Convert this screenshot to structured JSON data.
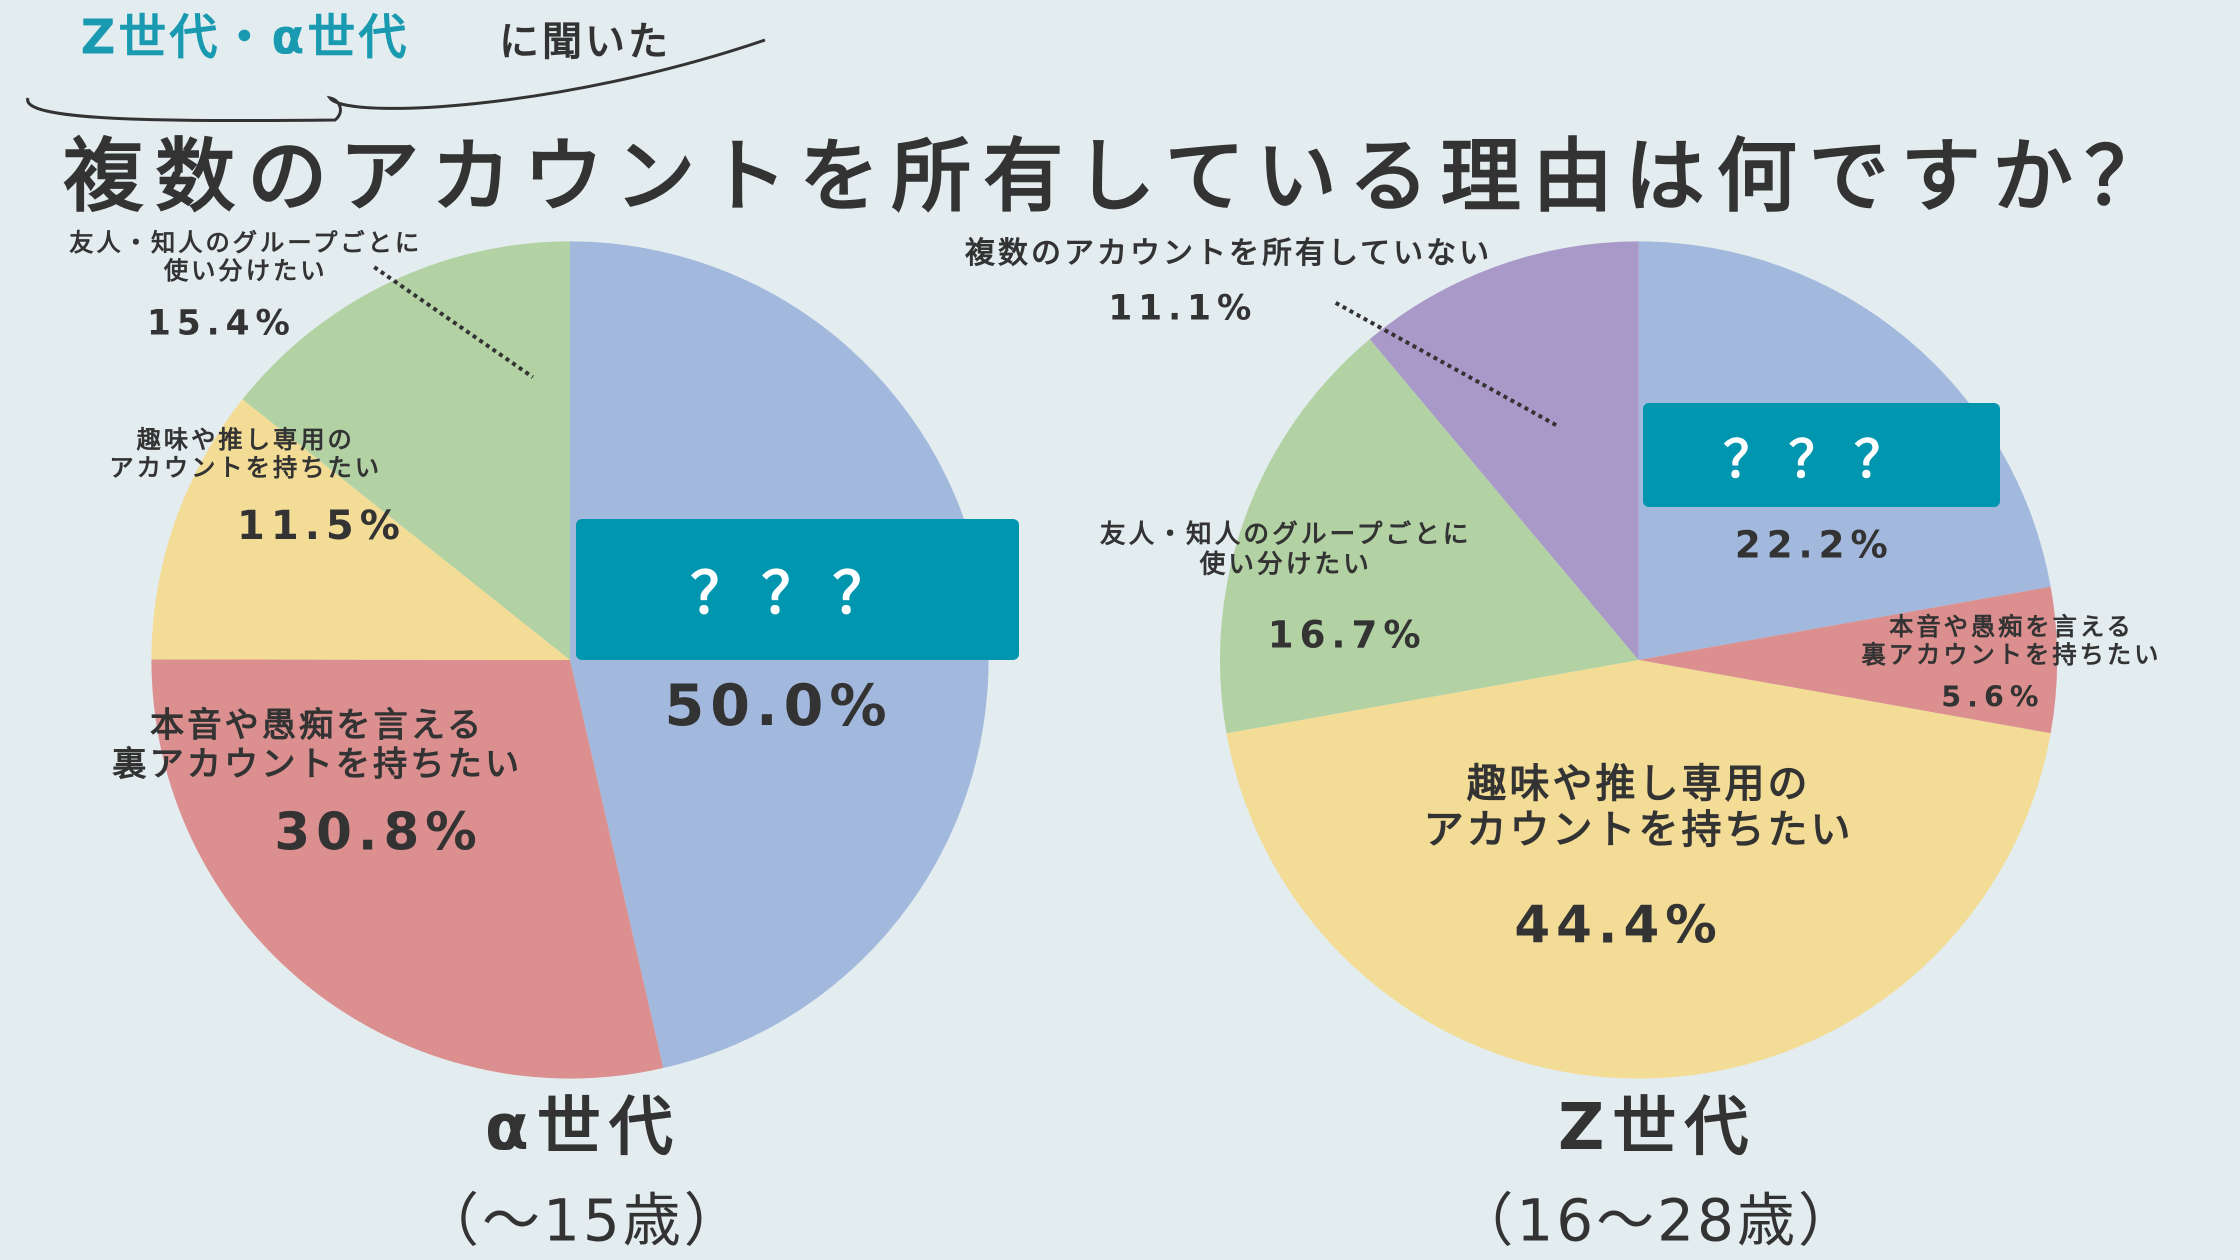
{
  "header": {
    "tag_highlight": "Z世代・α世代",
    "tag_rest": "に聞いた",
    "title": "複数のアカウントを所有している理由は何ですか？"
  },
  "chart_data": [
    {
      "type": "pie",
      "title": "α世代",
      "subtitle": "（〜15歳）",
      "categories": [
        "？？？",
        "本音や愚痴を言える\n裏アカウントを持ちたい",
        "趣味や推し専用の\nアカウントを持ちたい",
        "友人・知人のグループごとに\n使い分けたい"
      ],
      "values": [
        50.0,
        30.8,
        11.5,
        15.4
      ],
      "value_labels": [
        "50.0%",
        "30.8%",
        "11.5%",
        "15.4%"
      ],
      "colors": [
        "#a2b8dc",
        "#dc8f8f",
        "#f3dc96",
        "#b2d2a4"
      ]
    },
    {
      "type": "pie",
      "title": "Z世代",
      "subtitle": "（16〜28歳）",
      "categories": [
        "？？？",
        "本音や愚痴を言える\n裏アカウントを持ちたい",
        "趣味や推し専用の\nアカウントを持ちたい",
        "友人・知人のグループごとに\n使い分けたい",
        "複数のアカウントを所有していない"
      ],
      "values": [
        22.2,
        5.6,
        44.4,
        16.7,
        11.1
      ],
      "value_labels": [
        "22.2%",
        "5.6%",
        "44.4%",
        "16.7%",
        "11.1%"
      ],
      "colors": [
        "#a2b8dc",
        "#dc8f8f",
        "#f3dc96",
        "#b2d2a4",
        "#a999c9"
      ]
    }
  ]
}
